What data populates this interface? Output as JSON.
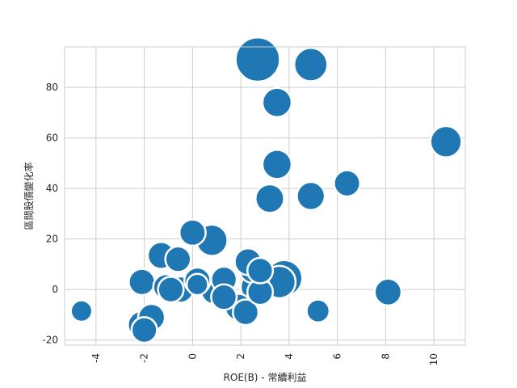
{
  "chart_data": {
    "type": "scatter",
    "title": "",
    "xlabel": "ROE(B) - 常續利益",
    "ylabel": "區間股價變化率",
    "xlim": [
      -5.3,
      11.3
    ],
    "ylim": [
      -22,
      96
    ],
    "xticks": [
      -4,
      -2,
      0,
      2,
      4,
      6,
      8,
      10
    ],
    "yticks": [
      -20,
      0,
      20,
      40,
      60,
      80
    ],
    "xtick_labels": [
      "-4",
      "-2",
      "0",
      "2",
      "4",
      "6",
      "8",
      "10"
    ],
    "ytick_labels": [
      "-20",
      "0",
      "20",
      "40",
      "60",
      "80"
    ],
    "grid": true,
    "legend": "none",
    "color": "#1f77b4",
    "points": [
      {
        "x": 2.7,
        "y": 91,
        "size": 3000
      },
      {
        "x": 4.9,
        "y": 89,
        "size": 1700
      },
      {
        "x": 3.5,
        "y": 74,
        "size": 1300
      },
      {
        "x": 10.5,
        "y": 58.5,
        "size": 1500
      },
      {
        "x": 3.5,
        "y": 49.5,
        "size": 1300
      },
      {
        "x": 6.4,
        "y": 42,
        "size": 1050
      },
      {
        "x": 3.2,
        "y": 36,
        "size": 1250
      },
      {
        "x": 4.9,
        "y": 37,
        "size": 1200
      },
      {
        "x": 0.8,
        "y": 19.5,
        "size": 1500
      },
      {
        "x": 0.0,
        "y": 22.5,
        "size": 1050
      },
      {
        "x": -1.3,
        "y": 13.5,
        "size": 1100
      },
      {
        "x": -0.6,
        "y": 12,
        "size": 1000
      },
      {
        "x": -2.1,
        "y": 3,
        "size": 1050
      },
      {
        "x": -1.1,
        "y": 1,
        "size": 1000
      },
      {
        "x": -0.9,
        "y": 0,
        "size": 1000
      },
      {
        "x": -0.5,
        "y": 0,
        "size": 1050
      },
      {
        "x": 0.2,
        "y": 3.5,
        "size": 1050
      },
      {
        "x": 0.9,
        "y": -0.5,
        "size": 1100
      },
      {
        "x": 1.3,
        "y": 4,
        "size": 1000
      },
      {
        "x": 1.3,
        "y": -3,
        "size": 1000
      },
      {
        "x": 1.9,
        "y": -7,
        "size": 1100
      },
      {
        "x": 2.2,
        "y": -9,
        "size": 1000
      },
      {
        "x": 2.3,
        "y": 11,
        "size": 1100
      },
      {
        "x": 2.5,
        "y": 8,
        "size": 1150
      },
      {
        "x": 2.6,
        "y": 1,
        "size": 1300
      },
      {
        "x": 2.8,
        "y": -1,
        "size": 1000
      },
      {
        "x": 2.8,
        "y": 7.5,
        "size": 1000
      },
      {
        "x": 3.6,
        "y": 3,
        "size": 1600
      },
      {
        "x": 3.8,
        "y": 4.5,
        "size": 2000
      },
      {
        "x": 5.2,
        "y": -8.5,
        "size": 800
      },
      {
        "x": 8.1,
        "y": -1,
        "size": 1100
      },
      {
        "x": -4.6,
        "y": -8.5,
        "size": 700
      },
      {
        "x": -2.1,
        "y": -14,
        "size": 1200
      },
      {
        "x": -2.0,
        "y": -16,
        "size": 1000
      },
      {
        "x": -1.7,
        "y": -11,
        "size": 1100
      },
      {
        "x": 0.2,
        "y": 2,
        "size": 700
      }
    ]
  }
}
